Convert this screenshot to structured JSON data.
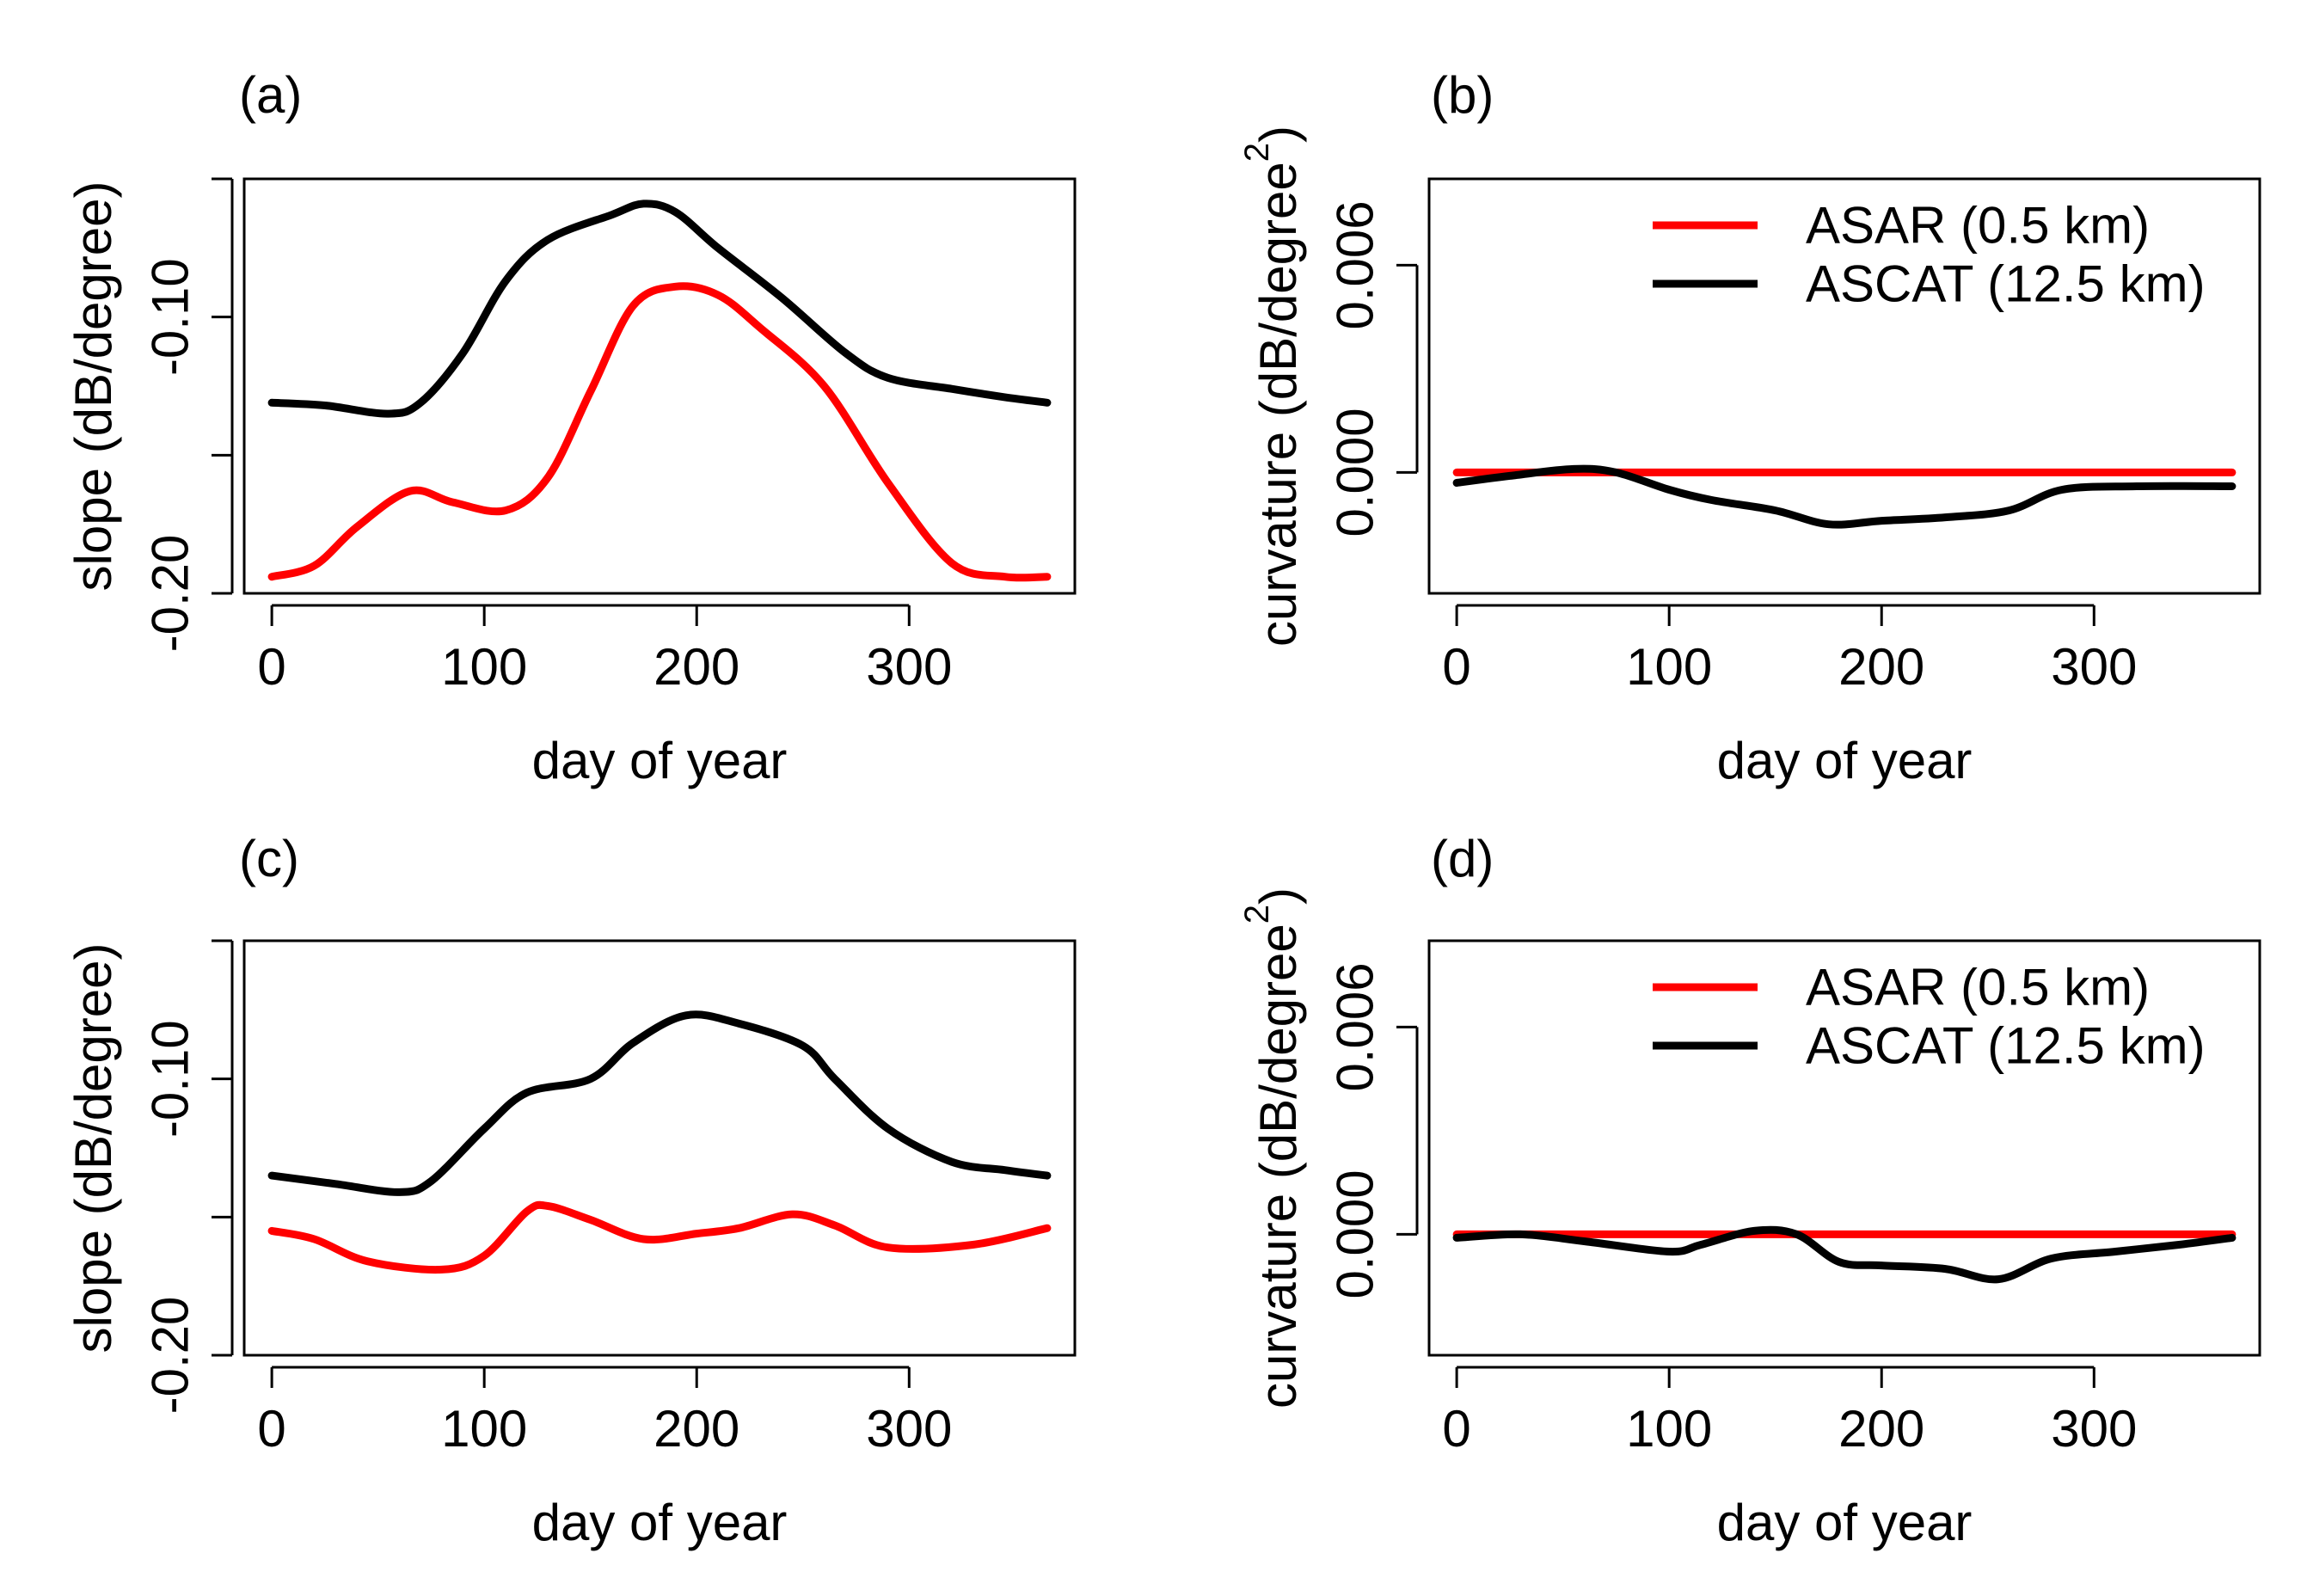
{
  "colors": {
    "asar": "#ff0000",
    "ascat": "#000000",
    "axis": "#000000"
  },
  "chart_data": [
    {
      "panel": "a",
      "type": "line",
      "panel_label": "(a)",
      "xlabel": "day of year",
      "ylabel": "slope (dB/degree)",
      "xlim": [
        -13,
        378
      ],
      "ylim": [
        -0.2,
        -0.05
      ],
      "xticks": [
        0,
        100,
        200,
        300
      ],
      "xtick_labels": [
        "0",
        "100",
        "200",
        "300"
      ],
      "yticks": [
        -0.2,
        -0.15,
        -0.1,
        -0.05
      ],
      "ytick_labels": [
        "-0.20",
        "",
        "-0.10",
        ""
      ],
      "legend": null,
      "series": [
        {
          "name": "ASAR (0.5 km)",
          "color": "#ff0000",
          "x": [
            0,
            20,
            40,
            65,
            85,
            110,
            130,
            150,
            170,
            190,
            210,
            230,
            260,
            290,
            320,
            345,
            365
          ],
          "y": [
            -0.194,
            -0.19,
            -0.176,
            -0.163,
            -0.167,
            -0.17,
            -0.158,
            -0.127,
            -0.096,
            -0.089,
            -0.092,
            -0.104,
            -0.125,
            -0.16,
            -0.189,
            -0.194,
            -0.194
          ]
        },
        {
          "name": "ASCAT (12.5 km)",
          "color": "#000000",
          "x": [
            0,
            25,
            55,
            70,
            90,
            110,
            130,
            160,
            175,
            190,
            210,
            240,
            270,
            290,
            320,
            345,
            365
          ],
          "y": [
            -0.131,
            -0.132,
            -0.135,
            -0.131,
            -0.113,
            -0.087,
            -0.072,
            -0.063,
            -0.059,
            -0.062,
            -0.075,
            -0.093,
            -0.113,
            -0.122,
            -0.126,
            -0.129,
            -0.131
          ]
        }
      ]
    },
    {
      "panel": "b",
      "type": "line",
      "panel_label": "(b)",
      "xlabel": "day of year",
      "ylabel": "curvature (dB/degree",
      "ylabel_sup": "2",
      "ylabel_close": ")",
      "xlim": [
        -13,
        378
      ],
      "ylim": [
        -0.0035,
        0.0085
      ],
      "xticks": [
        0,
        100,
        200,
        300
      ],
      "xtick_labels": [
        "0",
        "100",
        "200",
        "300"
      ],
      "yticks": [
        0,
        0.006
      ],
      "ytick_labels": [
        "0.000",
        "0.006"
      ],
      "legend": {
        "position": "top-right",
        "entries": [
          "ASAR (0.5 km)",
          "ASCAT (12.5 km)"
        ]
      },
      "series": [
        {
          "name": "ASAR (0.5 km)",
          "color": "#ff0000",
          "x": [
            0,
            365
          ],
          "y": [
            0,
            0
          ]
        },
        {
          "name": "ASCAT (12.5 km)",
          "color": "#000000",
          "x": [
            0,
            25,
            55,
            75,
            100,
            120,
            150,
            175,
            200,
            230,
            260,
            285,
            320,
            365
          ],
          "y": [
            -0.0003,
            -0.0001,
            0.0001,
            0.0,
            -0.0005,
            -0.0008,
            -0.0011,
            -0.0015,
            -0.0014,
            -0.0013,
            -0.0011,
            -0.0005,
            -0.0004,
            -0.0004
          ]
        }
      ]
    },
    {
      "panel": "c",
      "type": "line",
      "panel_label": "(c)",
      "xlabel": "day of year",
      "ylabel": "slope (dB/degree)",
      "xlim": [
        -13,
        378
      ],
      "ylim": [
        -0.2,
        -0.05
      ],
      "xticks": [
        0,
        100,
        200,
        300
      ],
      "xtick_labels": [
        "0",
        "100",
        "200",
        "300"
      ],
      "yticks": [
        -0.2,
        -0.15,
        -0.1,
        -0.05
      ],
      "ytick_labels": [
        "-0.20",
        "",
        "-0.10",
        ""
      ],
      "legend": null,
      "series": [
        {
          "name": "ASAR (0.5 km)",
          "color": "#ff0000",
          "x": [
            0,
            20,
            45,
            80,
            100,
            120,
            130,
            150,
            175,
            200,
            220,
            245,
            265,
            290,
            330,
            365
          ],
          "y": [
            -0.155,
            -0.158,
            -0.166,
            -0.169,
            -0.164,
            -0.148,
            -0.146,
            -0.151,
            -0.158,
            -0.156,
            -0.154,
            -0.149,
            -0.153,
            -0.161,
            -0.16,
            -0.154
          ]
        },
        {
          "name": "ASCAT (12.5 km)",
          "color": "#000000",
          "x": [
            0,
            30,
            60,
            75,
            100,
            120,
            150,
            170,
            195,
            220,
            250,
            265,
            290,
            320,
            345,
            365
          ],
          "y": [
            -0.135,
            -0.138,
            -0.141,
            -0.137,
            -0.118,
            -0.105,
            -0.1,
            -0.087,
            -0.077,
            -0.08,
            -0.088,
            -0.1,
            -0.118,
            -0.13,
            -0.133,
            -0.135
          ]
        }
      ]
    },
    {
      "panel": "d",
      "type": "line",
      "panel_label": "(d)",
      "xlabel": "day of year",
      "ylabel": "curvature (dB/degree",
      "ylabel_sup": "2",
      "ylabel_close": ")",
      "xlim": [
        -13,
        378
      ],
      "ylim": [
        -0.0035,
        0.0085
      ],
      "xticks": [
        0,
        100,
        200,
        300
      ],
      "xtick_labels": [
        "0",
        "100",
        "200",
        "300"
      ],
      "yticks": [
        0,
        0.006
      ],
      "ytick_labels": [
        "0.000",
        "0.006"
      ],
      "legend": {
        "position": "top-right",
        "entries": [
          "ASAR (0.5 km)",
          "ASCAT (12.5 km)"
        ]
      },
      "series": [
        {
          "name": "ASAR (0.5 km)",
          "color": "#ff0000",
          "x": [
            0,
            365
          ],
          "y": [
            0,
            0
          ]
        },
        {
          "name": "ASCAT (12.5 km)",
          "color": "#000000",
          "x": [
            0,
            30,
            60,
            100,
            115,
            140,
            160,
            180,
            200,
            230,
            255,
            280,
            310,
            340,
            365
          ],
          "y": [
            -0.0001,
            0.0,
            -0.0002,
            -0.0005,
            -0.0003,
            0.0001,
            0.0,
            -0.0008,
            -0.0009,
            -0.001,
            -0.0013,
            -0.0007,
            -0.0005,
            -0.0003,
            -0.0001
          ]
        }
      ]
    }
  ]
}
